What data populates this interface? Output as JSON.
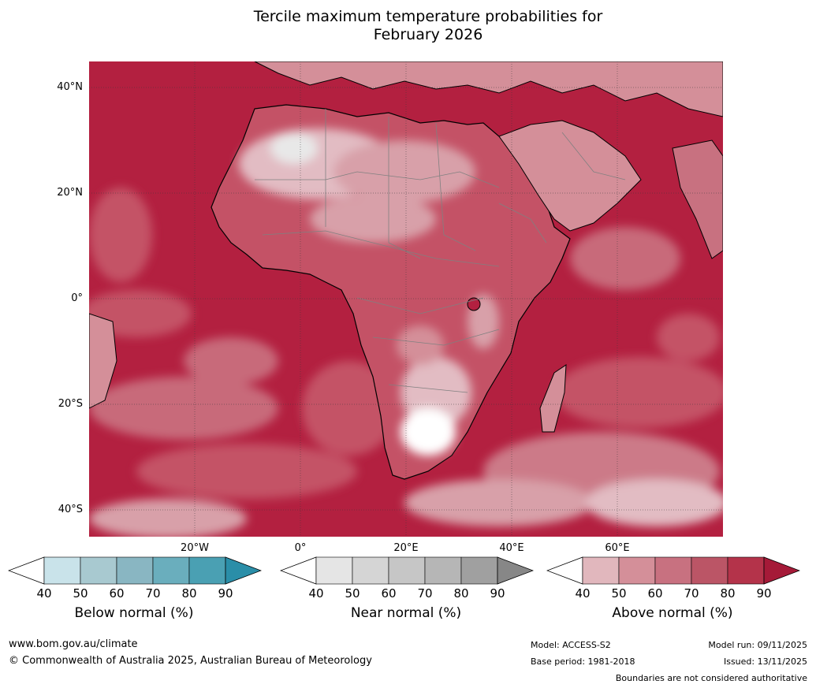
{
  "title_line1": "Tercile maximum temperature probabilities for",
  "title_line2": "February 2026",
  "map": {
    "region": "Africa",
    "lat_labels": [
      "40°N",
      "20°N",
      "0°",
      "20°S",
      "40°S"
    ],
    "lon_labels": [
      "20°W",
      "0°",
      "20°E",
      "40°E",
      "60°E"
    ]
  },
  "colorbars": [
    {
      "title": "Below normal (%)",
      "ticks": [
        "40",
        "50",
        "60",
        "70",
        "80",
        "90"
      ],
      "colors": [
        "#ffffff",
        "#c9e3ea",
        "#a8c9d0",
        "#89b6c2",
        "#6aaebd",
        "#4aa0b3",
        "#2a8ea8"
      ]
    },
    {
      "title": "Near normal (%)",
      "ticks": [
        "40",
        "50",
        "60",
        "70",
        "80",
        "90"
      ],
      "colors": [
        "#ffffff",
        "#e5e5e5",
        "#d5d5d5",
        "#c6c6c6",
        "#b6b6b6",
        "#a0a0a0",
        "#878787"
      ]
    },
    {
      "title": "Above normal (%)",
      "ticks": [
        "40",
        "50",
        "60",
        "70",
        "80",
        "90"
      ],
      "colors": [
        "#ffffff",
        "#e1b7bd",
        "#d48f99",
        "#c87180",
        "#bb5566",
        "#b4334a",
        "#a51a38"
      ]
    }
  ],
  "footer": {
    "website": "www.bom.gov.au/climate",
    "copyright": "© Commonwealth of Australia 2025, Australian Bureau of Meteorology",
    "model": "Model: ACCESS-S2",
    "base_period": "Base period: 1981-2018",
    "model_run": "Model run: 09/11/2025",
    "issued": "Issued: 13/11/2025",
    "disclaimer": "Boundaries are not considered authoritative"
  }
}
